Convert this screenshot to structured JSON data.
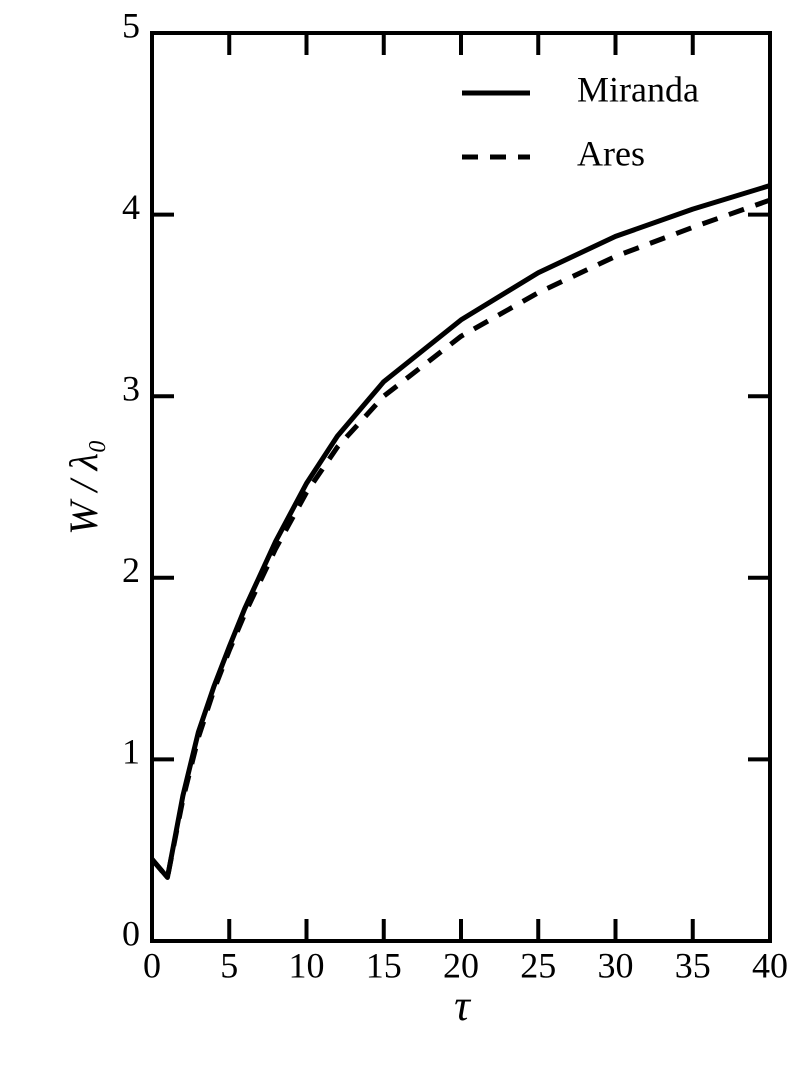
{
  "chart_data": {
    "type": "line",
    "x_label": "τ",
    "y_label": "W / λ₀",
    "x": [
      0,
      1,
      2,
      3,
      4,
      5,
      6,
      8,
      10,
      12,
      15,
      20,
      25,
      30,
      35,
      40
    ],
    "series": [
      {
        "name": "Miranda",
        "color": "#000000",
        "linestyle": "solid",
        "values": [
          0.45,
          0.35,
          0.8,
          1.15,
          1.4,
          1.62,
          1.83,
          2.2,
          2.52,
          2.78,
          3.08,
          3.42,
          3.68,
          3.88,
          4.03,
          4.16
        ]
      },
      {
        "name": "Ares",
        "color": "#000000",
        "linestyle": "dashed",
        "values": [
          0.45,
          0.35,
          0.78,
          1.12,
          1.38,
          1.6,
          1.8,
          2.16,
          2.47,
          2.72,
          3.0,
          3.33,
          3.57,
          3.77,
          3.93,
          4.08
        ]
      }
    ],
    "xlim": [
      0,
      40
    ],
    "ylim": [
      0,
      5
    ],
    "xticks": [
      0,
      5,
      10,
      15,
      20,
      25,
      30,
      35,
      40
    ],
    "yticks": [
      0,
      1,
      2,
      3,
      4,
      5
    ],
    "legend": "upper right",
    "grid": false
  }
}
